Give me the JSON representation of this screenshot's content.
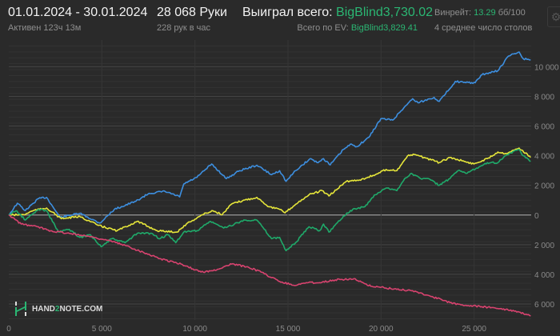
{
  "header": {
    "date_range": "01.01.2024 - 30.01.2024",
    "active_time": "Активен 123ч 13м",
    "hands": "28 068 Руки",
    "hands_per_hour": "228 рук в час",
    "won_total_label": "Выиграл всего:",
    "won_total_value": "BigBlind3,730.02",
    "ev_total_label": "Всего по EV:",
    "ev_total_value": "BigBlind3,829.41",
    "winrate_label": "Винрейт:",
    "winrate_value": "13.29",
    "winrate_unit": "бб/100",
    "avg_tables": "4 среднее число столов",
    "settings_icon": "gear-icon"
  },
  "logo": {
    "text_a": "HAND",
    "text_b": "2",
    "text_c": "NOTE.COM"
  },
  "colors": {
    "background": "#2a2a2a",
    "accent_green": "#2bb673",
    "blue": "#3d8fe0",
    "yellow": "#e6e63a",
    "green": "#1faa6a",
    "red": "#d8436f"
  },
  "chart_data": {
    "type": "line",
    "title": "",
    "xlabel": "",
    "ylabel": "",
    "xlim": [
      0,
      28068
    ],
    "ylim": [
      -7080,
      11800
    ],
    "grid": true,
    "x_ticks": [
      0,
      5000,
      10000,
      15000,
      20000,
      25000
    ],
    "x_tick_labels": [
      "0",
      "5 000",
      "10 000",
      "15 000",
      "20 000",
      "25 000"
    ],
    "y_ticks": [
      10000,
      8000,
      6000,
      4000,
      2000,
      0,
      -2000,
      -4000,
      -6000
    ],
    "y_tick_labels": [
      "10 000",
      "8 000",
      "6 000",
      "4 000",
      "2 000",
      "0",
      "2 000",
      "4 000",
      "6 000"
    ],
    "series": [
      {
        "color": "#3d8fe0",
        "points": [
          [
            0,
            0
          ],
          [
            460,
            790
          ],
          [
            890,
            300
          ],
          [
            1600,
            1110
          ],
          [
            2030,
            1190
          ],
          [
            2750,
            -160
          ],
          [
            3820,
            110
          ],
          [
            4890,
            -550
          ],
          [
            5670,
            380
          ],
          [
            6820,
            920
          ],
          [
            7540,
            1460
          ],
          [
            8400,
            1590
          ],
          [
            9180,
            1220
          ],
          [
            9400,
            2090
          ],
          [
            10110,
            2540
          ],
          [
            10900,
            3440
          ],
          [
            11690,
            2450
          ],
          [
            12400,
            2990
          ],
          [
            13330,
            3350
          ],
          [
            14120,
            2720
          ],
          [
            14550,
            2990
          ],
          [
            14900,
            2270
          ],
          [
            15410,
            2990
          ],
          [
            16190,
            3800
          ],
          [
            16620,
            3530
          ],
          [
            16910,
            3800
          ],
          [
            17270,
            3380
          ],
          [
            17980,
            4420
          ],
          [
            18410,
            4780
          ],
          [
            18700,
            4610
          ],
          [
            19340,
            5230
          ],
          [
            19990,
            6490
          ],
          [
            20630,
            6400
          ],
          [
            21270,
            7300
          ],
          [
            21700,
            7840
          ],
          [
            21990,
            7570
          ],
          [
            22850,
            7930
          ],
          [
            23130,
            7660
          ],
          [
            23990,
            9010
          ],
          [
            24560,
            8920
          ],
          [
            25060,
            8920
          ],
          [
            25420,
            9460
          ],
          [
            26280,
            9730
          ],
          [
            26850,
            10720
          ],
          [
            27420,
            10990
          ],
          [
            27640,
            10540
          ],
          [
            28040,
            10450
          ]
        ]
      },
      {
        "color": "#e6e63a",
        "points": [
          [
            0,
            0
          ],
          [
            820,
            20
          ],
          [
            1320,
            300
          ],
          [
            2030,
            470
          ],
          [
            2820,
            -250
          ],
          [
            3820,
            -110
          ],
          [
            4820,
            -700
          ],
          [
            5820,
            -1060
          ],
          [
            6900,
            -430
          ],
          [
            7970,
            -1060
          ],
          [
            9040,
            -1150
          ],
          [
            9540,
            -610
          ],
          [
            10400,
            20
          ],
          [
            10970,
            290
          ],
          [
            11470,
            20
          ],
          [
            11970,
            740
          ],
          [
            12690,
            1010
          ],
          [
            13330,
            1190
          ],
          [
            13980,
            560
          ],
          [
            14550,
            380
          ],
          [
            14840,
            150
          ],
          [
            15410,
            720
          ],
          [
            16130,
            1370
          ],
          [
            16840,
            1640
          ],
          [
            17200,
            1280
          ],
          [
            18130,
            2270
          ],
          [
            18840,
            2360
          ],
          [
            19700,
            2720
          ],
          [
            20270,
            3070
          ],
          [
            20850,
            2990
          ],
          [
            21420,
            3980
          ],
          [
            21850,
            4070
          ],
          [
            22700,
            3710
          ],
          [
            23130,
            3530
          ],
          [
            23700,
            3880
          ],
          [
            24990,
            3440
          ],
          [
            25710,
            3800
          ],
          [
            26280,
            4250
          ],
          [
            26710,
            4150
          ],
          [
            27420,
            4510
          ],
          [
            28040,
            3880
          ]
        ]
      },
      {
        "color": "#1faa6a",
        "points": [
          [
            0,
            0
          ],
          [
            390,
            290
          ],
          [
            890,
            -340
          ],
          [
            1600,
            380
          ],
          [
            2030,
            290
          ],
          [
            2670,
            -1150
          ],
          [
            3250,
            -970
          ],
          [
            3820,
            -1510
          ],
          [
            4390,
            -1330
          ],
          [
            4960,
            -2140
          ],
          [
            5540,
            -1600
          ],
          [
            6250,
            -1870
          ],
          [
            6900,
            -1240
          ],
          [
            7680,
            -1240
          ],
          [
            8110,
            -1600
          ],
          [
            8540,
            -1330
          ],
          [
            8970,
            -1870
          ],
          [
            9400,
            -1150
          ],
          [
            10110,
            -1060
          ],
          [
            10830,
            -430
          ],
          [
            11550,
            -880
          ],
          [
            12120,
            -610
          ],
          [
            12690,
            -340
          ],
          [
            13330,
            -340
          ],
          [
            14120,
            -1600
          ],
          [
            14550,
            -1510
          ],
          [
            14900,
            -2410
          ],
          [
            15410,
            -1870
          ],
          [
            16130,
            -790
          ],
          [
            16700,
            -1060
          ],
          [
            16910,
            -610
          ],
          [
            17200,
            -1150
          ],
          [
            17980,
            -70
          ],
          [
            18480,
            380
          ],
          [
            19130,
            560
          ],
          [
            19700,
            1370
          ],
          [
            20270,
            1820
          ],
          [
            20850,
            1640
          ],
          [
            21270,
            2450
          ],
          [
            21630,
            2810
          ],
          [
            22130,
            2450
          ],
          [
            22560,
            2450
          ],
          [
            23130,
            2000
          ],
          [
            23700,
            2450
          ],
          [
            24140,
            2990
          ],
          [
            24560,
            2810
          ],
          [
            25140,
            3170
          ],
          [
            25710,
            3530
          ],
          [
            26280,
            3530
          ],
          [
            26640,
            3980
          ],
          [
            27420,
            4420
          ],
          [
            27570,
            4070
          ],
          [
            28040,
            3610
          ]
        ]
      },
      {
        "color": "#d8436f",
        "points": [
          [
            0,
            0
          ],
          [
            670,
            -610
          ],
          [
            1530,
            -790
          ],
          [
            2250,
            -1060
          ],
          [
            3250,
            -1240
          ],
          [
            4250,
            -1420
          ],
          [
            5250,
            -1690
          ],
          [
            6250,
            -2050
          ],
          [
            7400,
            -2590
          ],
          [
            8110,
            -2940
          ],
          [
            9260,
            -3310
          ],
          [
            10330,
            -3850
          ],
          [
            10970,
            -3760
          ],
          [
            11970,
            -3310
          ],
          [
            12830,
            -3490
          ],
          [
            13550,
            -3850
          ],
          [
            14550,
            -4480
          ],
          [
            15410,
            -4750
          ],
          [
            15980,
            -4560
          ],
          [
            16700,
            -4560
          ],
          [
            17410,
            -4390
          ],
          [
            18550,
            -4290
          ],
          [
            19270,
            -4750
          ],
          [
            20270,
            -4920
          ],
          [
            20850,
            -5020
          ],
          [
            21700,
            -5100
          ],
          [
            22560,
            -5430
          ],
          [
            23700,
            -5910
          ],
          [
            24560,
            -6090
          ],
          [
            25420,
            -6180
          ],
          [
            26140,
            -6270
          ],
          [
            26710,
            -6360
          ],
          [
            27420,
            -6540
          ],
          [
            28040,
            -6810
          ]
        ]
      }
    ]
  }
}
